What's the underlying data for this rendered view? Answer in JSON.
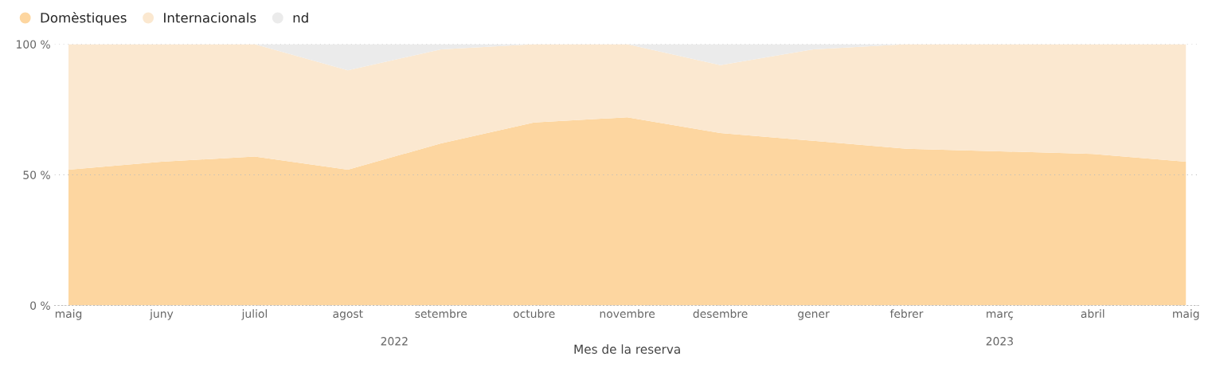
{
  "chart_data": {
    "type": "area",
    "stacked": true,
    "xlabel": "Mes de la reserva",
    "categories": [
      "maig",
      "juny",
      "juliol",
      "agost",
      "setembre",
      "octubre",
      "novembre",
      "desembre",
      "gener",
      "febrer",
      "març",
      "abril",
      "maig"
    ],
    "series": [
      {
        "name": "Domèstiques",
        "color": "#fdd6a0",
        "values": [
          52,
          55,
          57,
          52,
          62,
          70,
          72,
          66,
          63,
          60,
          59,
          58,
          55
        ]
      },
      {
        "name": "Internacionals",
        "color": "#fbe8d0",
        "values": [
          48,
          45,
          43,
          38,
          36,
          30,
          28,
          26,
          35,
          40,
          41,
          42,
          45
        ]
      },
      {
        "name": "nd",
        "color": "#ebebeb",
        "values": [
          0,
          0,
          0,
          10,
          2,
          0,
          0,
          8,
          2,
          0,
          0,
          0,
          0
        ]
      }
    ],
    "ylim": [
      0,
      100
    ],
    "yticks": [
      {
        "value": 0,
        "label": "0 %"
      },
      {
        "value": 50,
        "label": "50 %"
      },
      {
        "value": 100,
        "label": "100 %"
      }
    ],
    "grid": "y",
    "legend": "top left",
    "annotations": [
      "2022",
      "2023"
    ]
  }
}
